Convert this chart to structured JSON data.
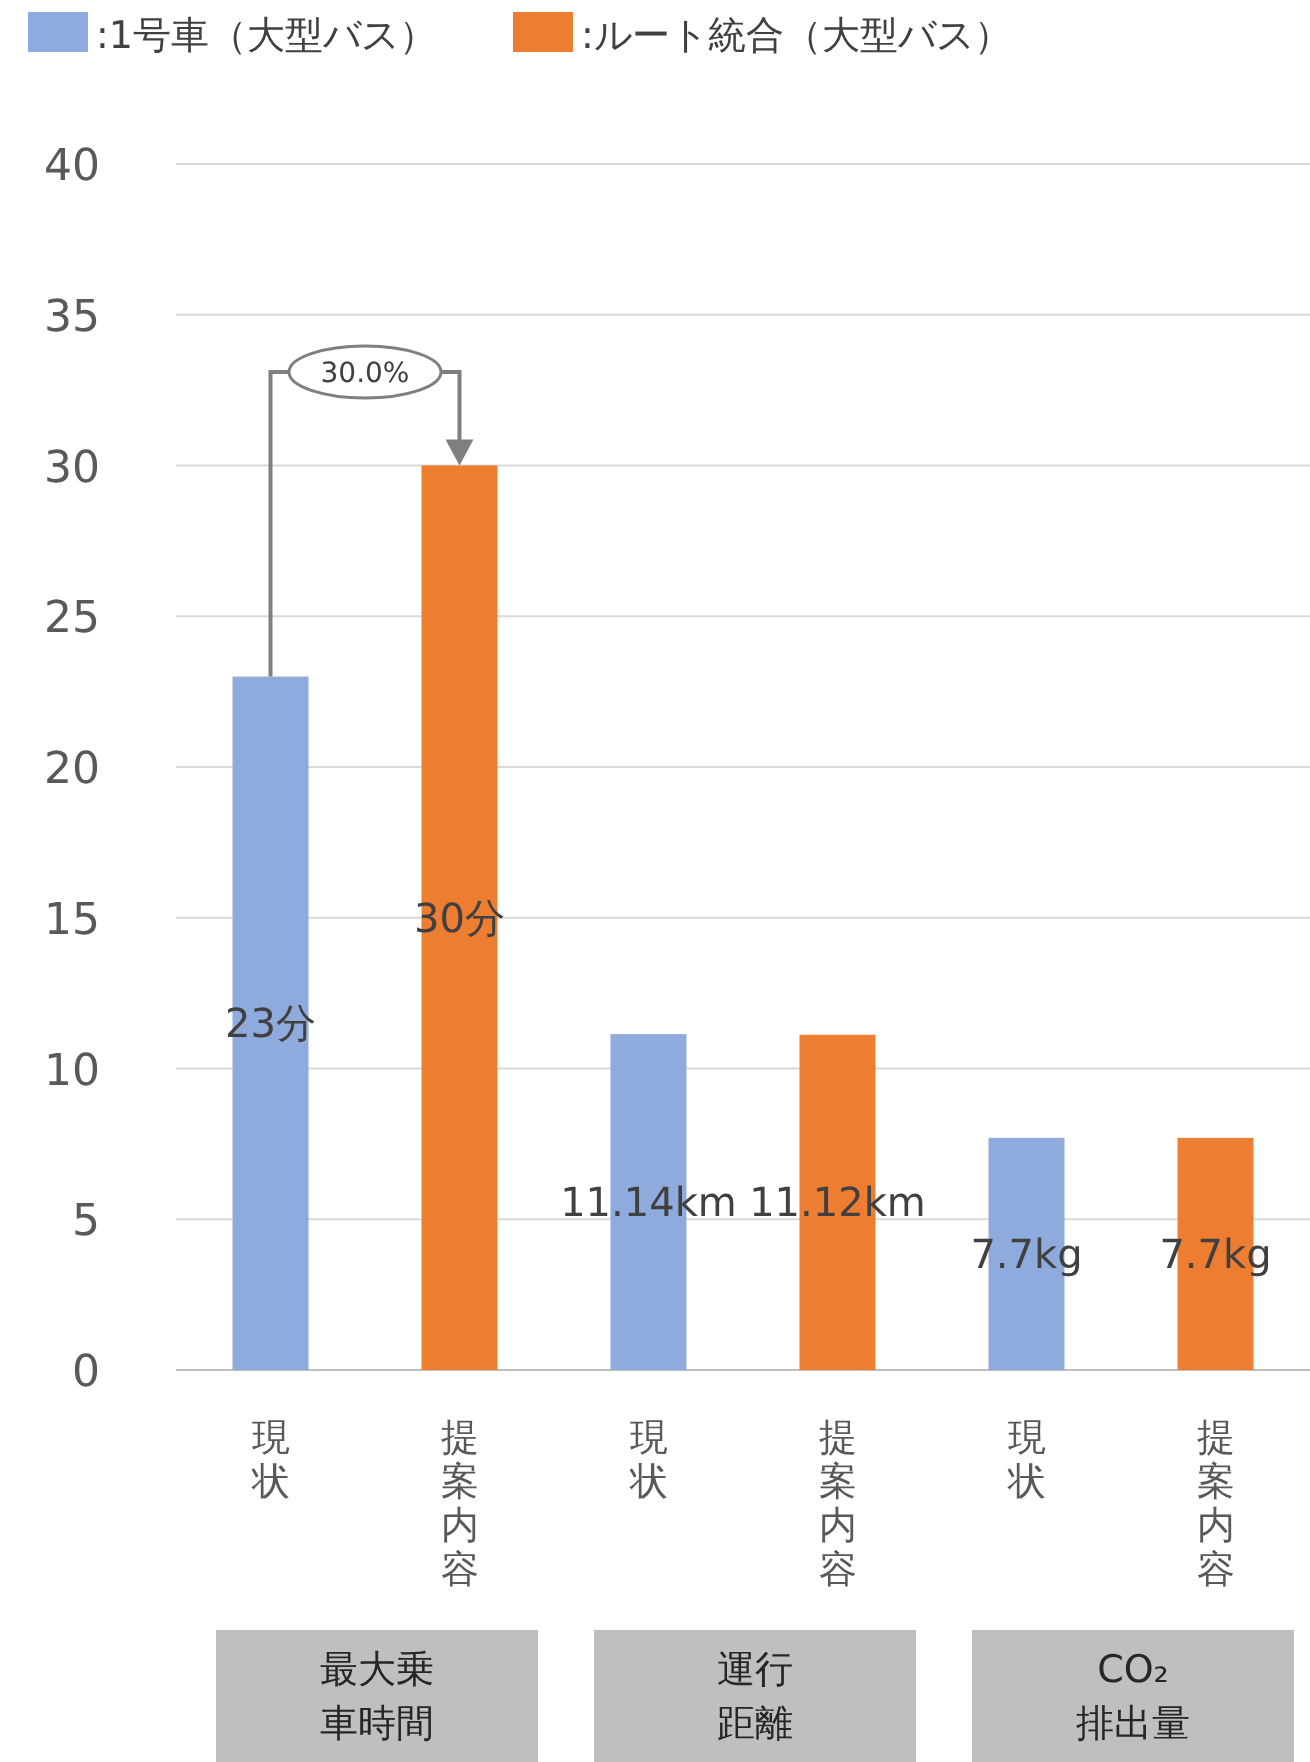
{
  "chart_data": {
    "type": "bar",
    "categories": [
      "現状",
      "提案内容",
      "現状",
      "提案内容",
      "現状",
      "提案内容"
    ],
    "series": [
      {
        "name": ":1号車（大型バス）",
        "color": "#8faadc",
        "values": [
          23,
          null,
          11.14,
          null,
          7.7,
          null
        ],
        "value_labels": [
          "23分",
          null,
          "11.14km",
          null,
          "7.7kg",
          null
        ]
      },
      {
        "name": ":ルート統合（大型バス）",
        "color": "#ed7d31",
        "values": [
          null,
          30,
          null,
          11.12,
          null,
          7.7
        ],
        "value_labels": [
          null,
          "30分",
          null,
          "11.12km",
          null,
          "7.7kg"
        ]
      }
    ],
    "ylim": [
      0,
      40
    ],
    "yticks": [
      0,
      5,
      10,
      15,
      20,
      25,
      30,
      35,
      40
    ],
    "grid": "y",
    "legend": "top left",
    "annotations": [
      "30.0%",
      "最大乗車時間",
      "運行距離",
      "CO₂排出量"
    ]
  }
}
